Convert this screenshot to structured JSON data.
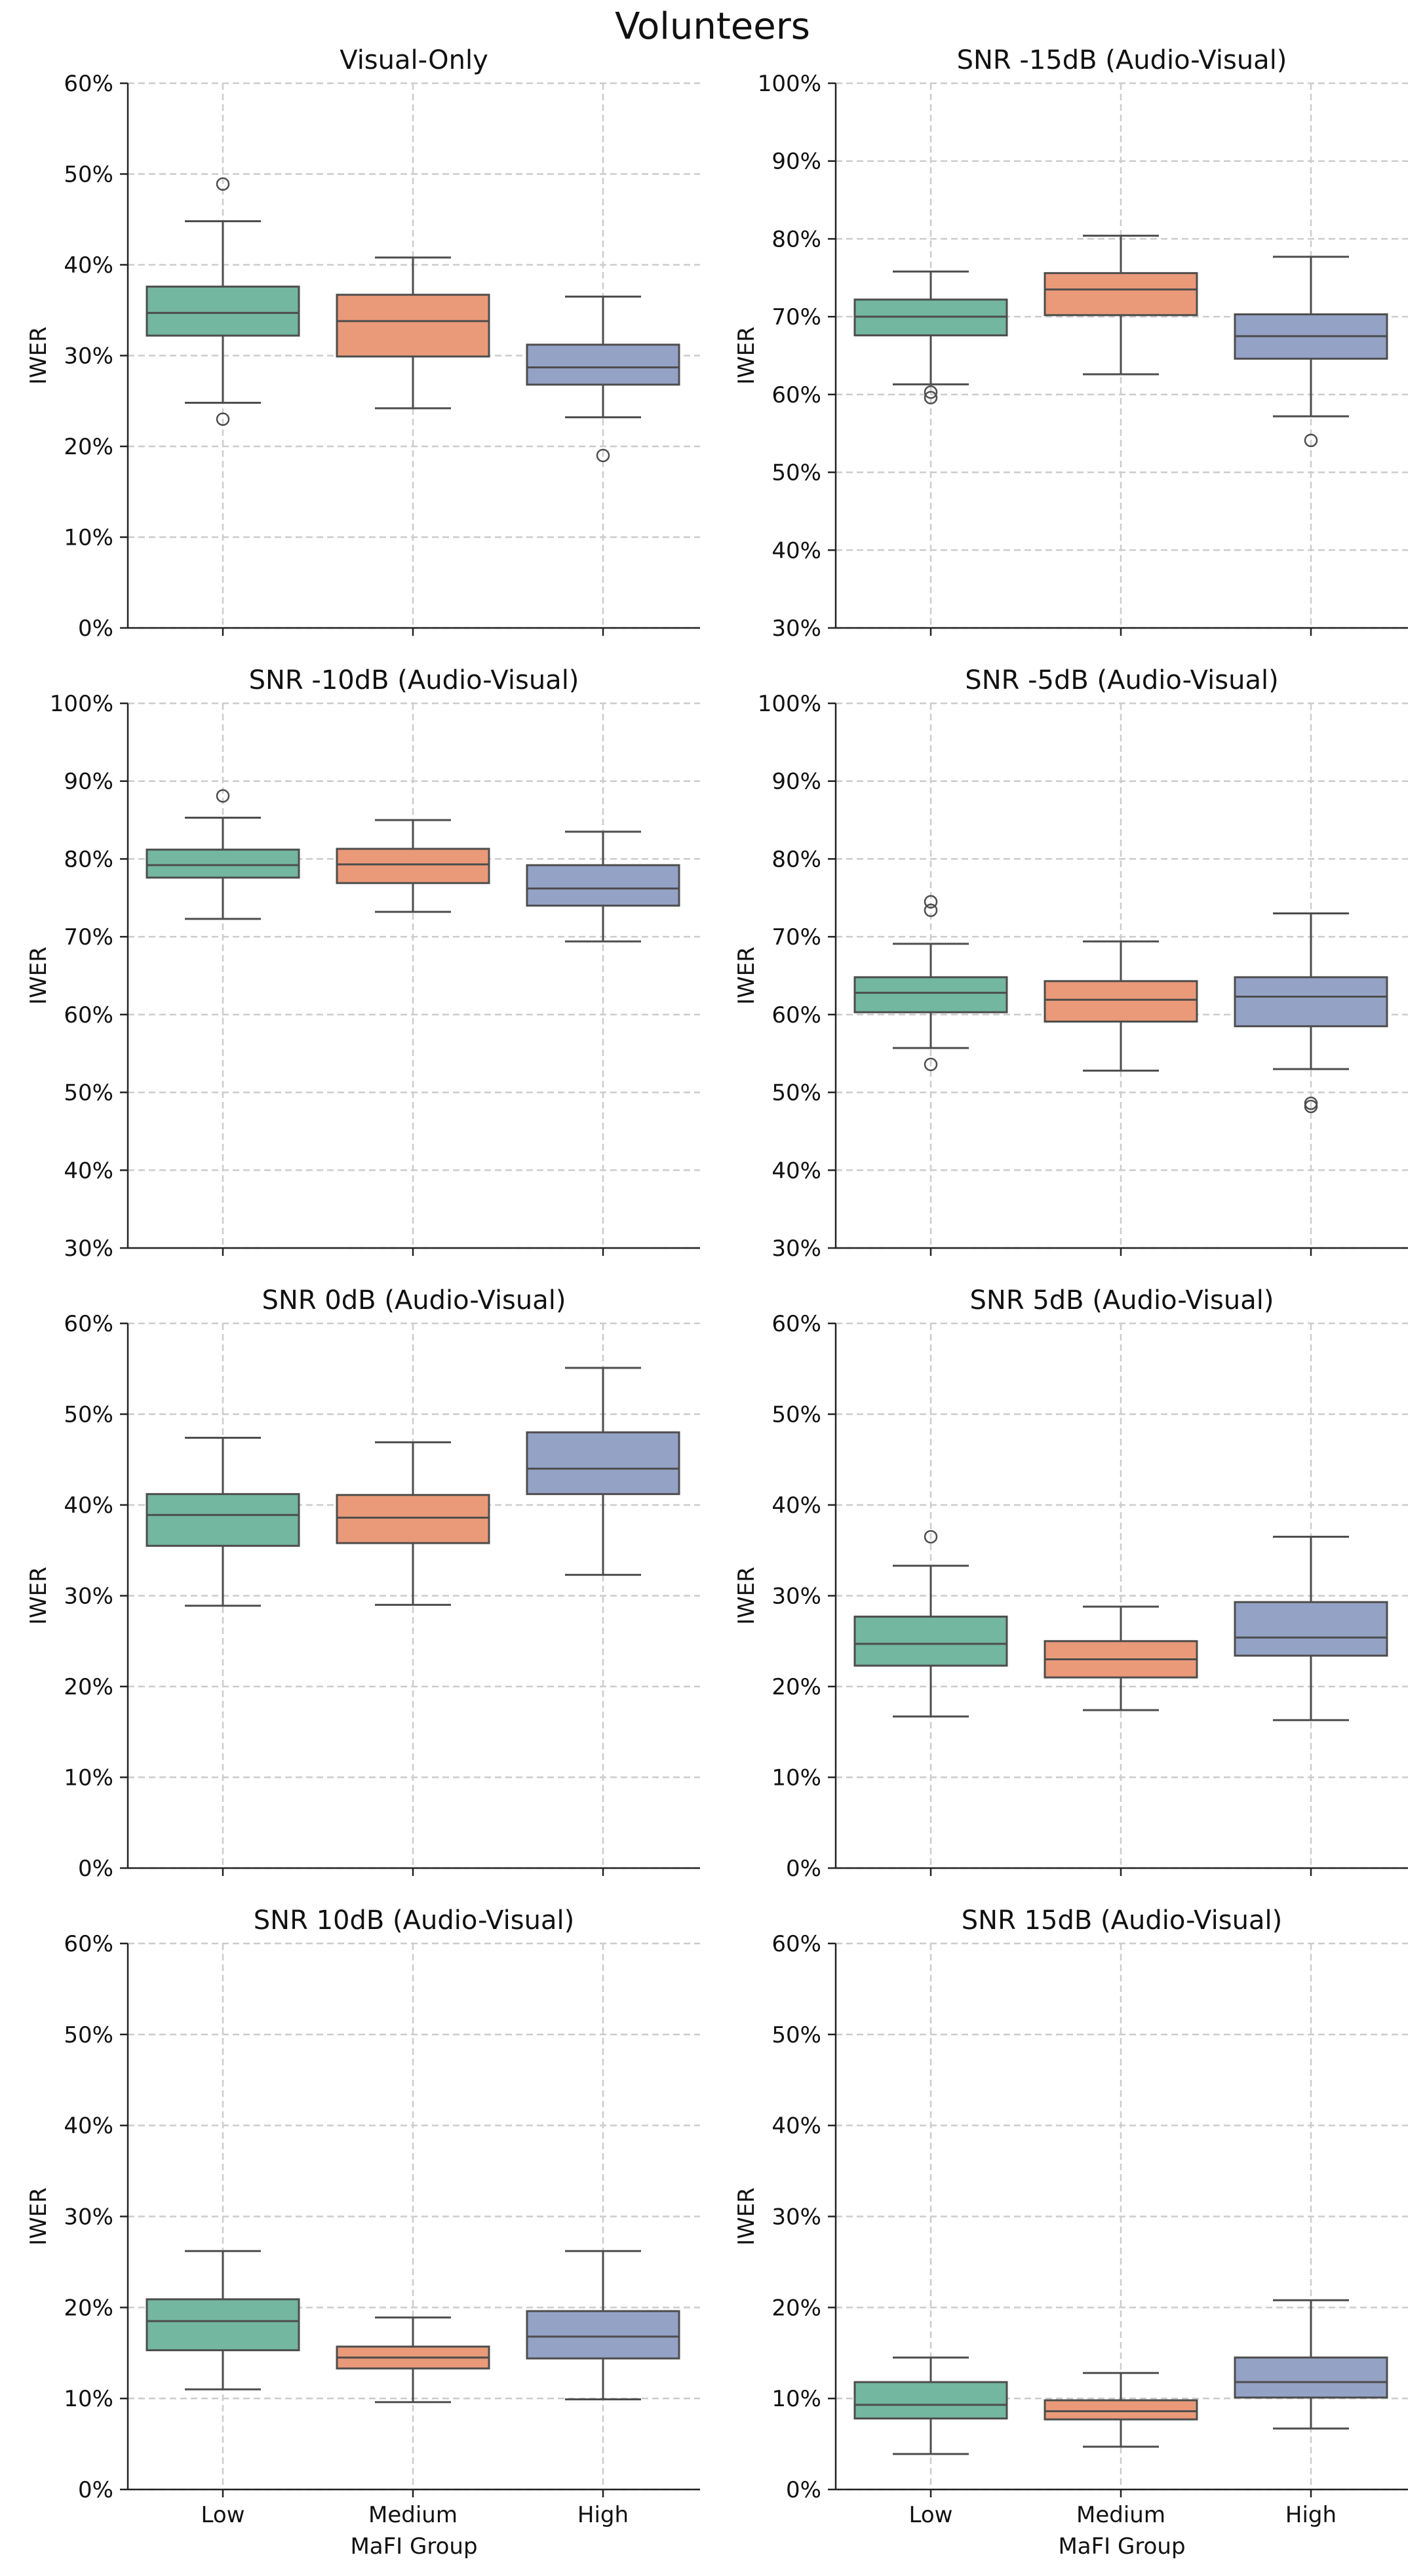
{
  "figure_title": "Volunteers",
  "colors": {
    "Low": "#73b7a0",
    "Medium": "#ea9a78",
    "High": "#94a2c6",
    "edge": "#4d4d4d",
    "grid": "#cccccc"
  },
  "chart_data": [
    {
      "type": "box",
      "title": "Visual-Only",
      "ylabel": "IWER",
      "xlabel": "",
      "categories": [
        "Low",
        "Medium",
        "High"
      ],
      "ylim": [
        0,
        60
      ],
      "yticks": [
        "0%",
        "10%",
        "20%",
        "30%",
        "40%",
        "50%",
        "60%"
      ],
      "grid": true,
      "boxes": [
        {
          "group": "Low",
          "whisker_low": 24.8,
          "q1": 32.2,
          "median": 34.7,
          "q3": 37.6,
          "whisker_high": 44.8,
          "outliers": [
            48.9,
            23.0
          ]
        },
        {
          "group": "Medium",
          "whisker_low": 24.2,
          "q1": 29.9,
          "median": 33.8,
          "q3": 36.7,
          "whisker_high": 40.8,
          "outliers": []
        },
        {
          "group": "High",
          "whisker_low": 23.2,
          "q1": 26.8,
          "median": 28.7,
          "q3": 31.2,
          "whisker_high": 36.5,
          "outliers": [
            19.0
          ]
        }
      ]
    },
    {
      "type": "box",
      "title": "SNR -15dB (Audio-Visual)",
      "ylabel": "IWER",
      "xlabel": "",
      "categories": [
        "Low",
        "Medium",
        "High"
      ],
      "ylim": [
        30,
        100
      ],
      "yticks": [
        "30%",
        "40%",
        "50%",
        "60%",
        "70%",
        "80%",
        "90%",
        "100%"
      ],
      "grid": true,
      "boxes": [
        {
          "group": "Low",
          "whisker_low": 61.3,
          "q1": 67.6,
          "median": 70.0,
          "q3": 72.2,
          "whisker_high": 75.8,
          "outliers": [
            60.3,
            59.6
          ]
        },
        {
          "group": "Medium",
          "whisker_low": 62.6,
          "q1": 70.2,
          "median": 73.5,
          "q3": 75.6,
          "whisker_high": 80.4,
          "outliers": []
        },
        {
          "group": "High",
          "whisker_low": 57.2,
          "q1": 64.6,
          "median": 67.5,
          "q3": 70.3,
          "whisker_high": 77.7,
          "outliers": [
            54.1
          ]
        }
      ]
    },
    {
      "type": "box",
      "title": "SNR -10dB (Audio-Visual)",
      "ylabel": "IWER",
      "xlabel": "",
      "categories": [
        "Low",
        "Medium",
        "High"
      ],
      "ylim": [
        30,
        100
      ],
      "yticks": [
        "30%",
        "40%",
        "50%",
        "60%",
        "70%",
        "80%",
        "90%",
        "100%"
      ],
      "grid": true,
      "boxes": [
        {
          "group": "Low",
          "whisker_low": 72.3,
          "q1": 77.6,
          "median": 79.2,
          "q3": 81.2,
          "whisker_high": 85.3,
          "outliers": [
            88.1
          ]
        },
        {
          "group": "Medium",
          "whisker_low": 73.2,
          "q1": 76.9,
          "median": 79.3,
          "q3": 81.3,
          "whisker_high": 85.0,
          "outliers": []
        },
        {
          "group": "High",
          "whisker_low": 69.4,
          "q1": 74.0,
          "median": 76.2,
          "q3": 79.2,
          "whisker_high": 83.5,
          "outliers": []
        }
      ]
    },
    {
      "type": "box",
      "title": "SNR -5dB (Audio-Visual)",
      "ylabel": "IWER",
      "xlabel": "",
      "categories": [
        "Low",
        "Medium",
        "High"
      ],
      "ylim": [
        30,
        100
      ],
      "yticks": [
        "30%",
        "40%",
        "50%",
        "60%",
        "70%",
        "80%",
        "90%",
        "100%"
      ],
      "grid": true,
      "boxes": [
        {
          "group": "Low",
          "whisker_low": 55.7,
          "q1": 60.3,
          "median": 62.8,
          "q3": 64.8,
          "whisker_high": 69.1,
          "outliers": [
            74.5,
            73.4,
            53.6
          ]
        },
        {
          "group": "Medium",
          "whisker_low": 52.8,
          "q1": 59.1,
          "median": 61.9,
          "q3": 64.3,
          "whisker_high": 69.4,
          "outliers": []
        },
        {
          "group": "High",
          "whisker_low": 53.0,
          "q1": 58.5,
          "median": 62.3,
          "q3": 64.8,
          "whisker_high": 73.0,
          "outliers": [
            48.6,
            48.2
          ]
        }
      ]
    },
    {
      "type": "box",
      "title": "SNR 0dB (Audio-Visual)",
      "ylabel": "IWER",
      "xlabel": "",
      "categories": [
        "Low",
        "Medium",
        "High"
      ],
      "ylim": [
        0,
        60
      ],
      "yticks": [
        "0%",
        "10%",
        "20%",
        "30%",
        "40%",
        "50%",
        "60%"
      ],
      "grid": true,
      "boxes": [
        {
          "group": "Low",
          "whisker_low": 28.9,
          "q1": 35.5,
          "median": 38.9,
          "q3": 41.2,
          "whisker_high": 47.4,
          "outliers": []
        },
        {
          "group": "Medium",
          "whisker_low": 29.0,
          "q1": 35.8,
          "median": 38.6,
          "q3": 41.1,
          "whisker_high": 46.9,
          "outliers": []
        },
        {
          "group": "High",
          "whisker_low": 32.3,
          "q1": 41.2,
          "median": 44.0,
          "q3": 48.0,
          "whisker_high": 55.1,
          "outliers": []
        }
      ]
    },
    {
      "type": "box",
      "title": "SNR 5dB (Audio-Visual)",
      "ylabel": "IWER",
      "xlabel": "",
      "categories": [
        "Low",
        "Medium",
        "High"
      ],
      "ylim": [
        0,
        60
      ],
      "yticks": [
        "0%",
        "10%",
        "20%",
        "30%",
        "40%",
        "50%",
        "60%"
      ],
      "grid": true,
      "boxes": [
        {
          "group": "Low",
          "whisker_low": 16.7,
          "q1": 22.3,
          "median": 24.7,
          "q3": 27.7,
          "whisker_high": 33.3,
          "outliers": [
            36.5
          ]
        },
        {
          "group": "Medium",
          "whisker_low": 17.4,
          "q1": 21.0,
          "median": 23.0,
          "q3": 25.0,
          "whisker_high": 28.8,
          "outliers": []
        },
        {
          "group": "High",
          "whisker_low": 16.3,
          "q1": 23.4,
          "median": 25.4,
          "q3": 29.3,
          "whisker_high": 36.5,
          "outliers": []
        }
      ]
    },
    {
      "type": "box",
      "title": "SNR 10dB (Audio-Visual)",
      "ylabel": "IWER",
      "xlabel": "MaFI Group",
      "categories": [
        "Low",
        "Medium",
        "High"
      ],
      "ylim": [
        0,
        60
      ],
      "yticks": [
        "0%",
        "10%",
        "20%",
        "30%",
        "40%",
        "50%",
        "60%"
      ],
      "grid": true,
      "boxes": [
        {
          "group": "Low",
          "whisker_low": 11.0,
          "q1": 15.3,
          "median": 18.5,
          "q3": 20.9,
          "whisker_high": 26.2,
          "outliers": []
        },
        {
          "group": "Medium",
          "whisker_low": 9.6,
          "q1": 13.3,
          "median": 14.5,
          "q3": 15.7,
          "whisker_high": 18.9,
          "outliers": []
        },
        {
          "group": "High",
          "whisker_low": 9.9,
          "q1": 14.4,
          "median": 16.8,
          "q3": 19.6,
          "whisker_high": 26.2,
          "outliers": []
        }
      ]
    },
    {
      "type": "box",
      "title": "SNR 15dB (Audio-Visual)",
      "ylabel": "IWER",
      "xlabel": "MaFI Group",
      "categories": [
        "Low",
        "Medium",
        "High"
      ],
      "ylim": [
        0,
        60
      ],
      "yticks": [
        "0%",
        "10%",
        "20%",
        "30%",
        "40%",
        "50%",
        "60%"
      ],
      "grid": true,
      "boxes": [
        {
          "group": "Low",
          "whisker_low": 3.9,
          "q1": 7.8,
          "median": 9.3,
          "q3": 11.8,
          "whisker_high": 14.5,
          "outliers": []
        },
        {
          "group": "Medium",
          "whisker_low": 4.7,
          "q1": 7.7,
          "median": 8.6,
          "q3": 9.8,
          "whisker_high": 12.8,
          "outliers": []
        },
        {
          "group": "High",
          "whisker_low": 6.7,
          "q1": 10.1,
          "median": 11.8,
          "q3": 14.5,
          "whisker_high": 20.8,
          "outliers": []
        }
      ]
    }
  ]
}
